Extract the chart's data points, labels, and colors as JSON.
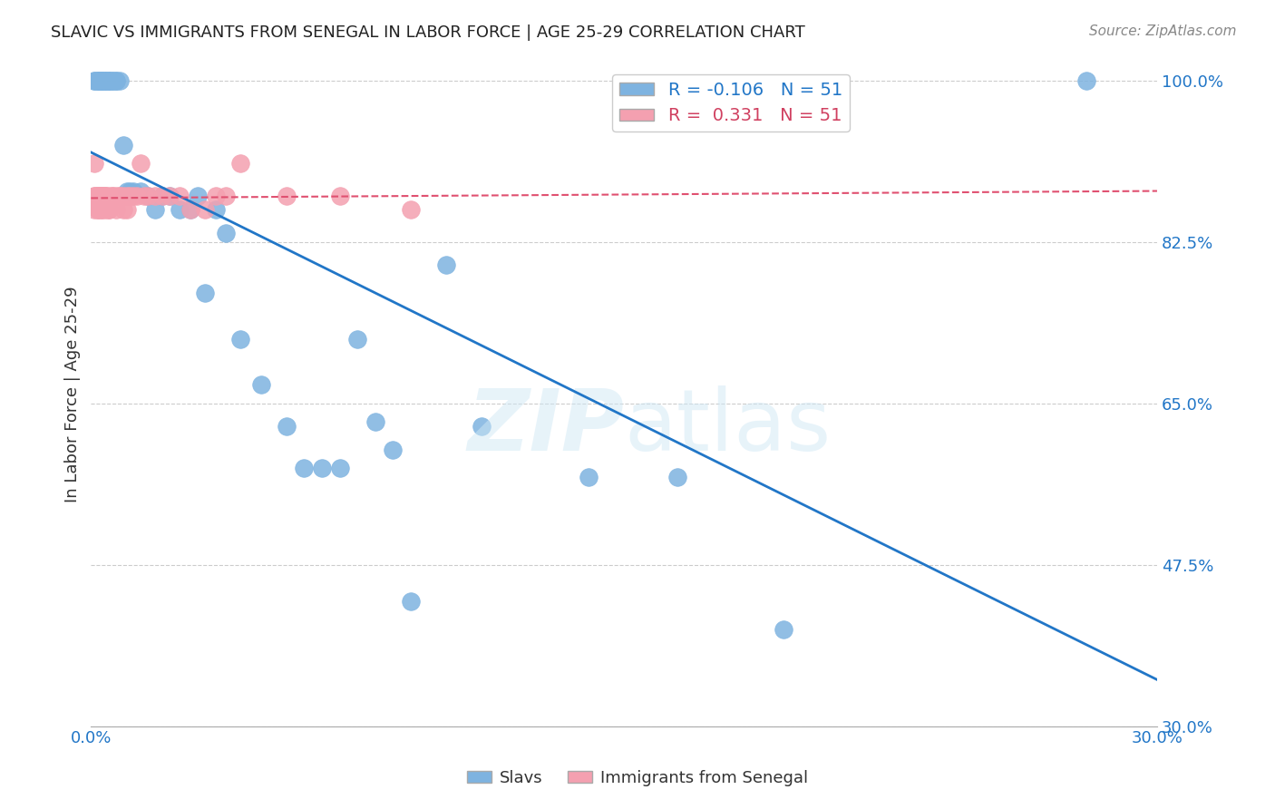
{
  "title": "SLAVIC VS IMMIGRANTS FROM SENEGAL IN LABOR FORCE | AGE 25-29 CORRELATION CHART",
  "source": "Source: ZipAtlas.com",
  "ylabel": "In Labor Force | Age 25-29",
  "x_min": 0.0,
  "x_max": 0.3,
  "y_min": 0.3,
  "y_max": 1.02,
  "legend_r_slavs": "-0.106",
  "legend_n_slavs": "51",
  "legend_r_senegal": "0.331",
  "legend_n_senegal": "51",
  "slavs_color": "#7eb3e0",
  "senegal_color": "#f4a0b0",
  "slavs_line_color": "#2176c7",
  "senegal_line_color": "#e05070",
  "background_color": "#ffffff",
  "grid_color": "#cccccc",
  "slavs_x": [
    0.001,
    0.001,
    0.002,
    0.002,
    0.002,
    0.003,
    0.003,
    0.003,
    0.003,
    0.004,
    0.004,
    0.004,
    0.005,
    0.005,
    0.005,
    0.006,
    0.006,
    0.007,
    0.007,
    0.008,
    0.009,
    0.01,
    0.011,
    0.012,
    0.014,
    0.016,
    0.018,
    0.02,
    0.022,
    0.025,
    0.028,
    0.03,
    0.032,
    0.035,
    0.038,
    0.042,
    0.048,
    0.055,
    0.06,
    0.065,
    0.07,
    0.075,
    0.08,
    0.085,
    0.09,
    0.1,
    0.11,
    0.14,
    0.165,
    0.195,
    0.28
  ],
  "slavs_y": [
    1.0,
    1.0,
    1.0,
    1.0,
    1.0,
    1.0,
    1.0,
    1.0,
    1.0,
    1.0,
    1.0,
    1.0,
    1.0,
    1.0,
    1.0,
    1.0,
    1.0,
    1.0,
    1.0,
    1.0,
    0.93,
    0.88,
    0.88,
    0.88,
    0.88,
    0.875,
    0.86,
    0.875,
    0.875,
    0.86,
    0.86,
    0.875,
    0.77,
    0.86,
    0.835,
    0.72,
    0.67,
    0.625,
    0.58,
    0.58,
    0.58,
    0.72,
    0.63,
    0.6,
    0.435,
    0.8,
    0.625,
    0.57,
    0.57,
    0.405,
    1.0
  ],
  "senegal_x": [
    0.001,
    0.001,
    0.001,
    0.001,
    0.002,
    0.002,
    0.002,
    0.002,
    0.002,
    0.002,
    0.003,
    0.003,
    0.003,
    0.003,
    0.003,
    0.003,
    0.004,
    0.004,
    0.004,
    0.004,
    0.005,
    0.005,
    0.005,
    0.006,
    0.006,
    0.007,
    0.007,
    0.008,
    0.008,
    0.009,
    0.009,
    0.01,
    0.01,
    0.011,
    0.012,
    0.013,
    0.014,
    0.015,
    0.016,
    0.018,
    0.02,
    0.022,
    0.025,
    0.028,
    0.032,
    0.035,
    0.038,
    0.042,
    0.055,
    0.07,
    0.09
  ],
  "senegal_y": [
    0.91,
    0.875,
    0.875,
    0.86,
    0.875,
    0.875,
    0.875,
    0.875,
    0.86,
    0.86,
    0.875,
    0.875,
    0.875,
    0.875,
    0.86,
    0.86,
    0.875,
    0.875,
    0.875,
    0.86,
    0.875,
    0.86,
    0.86,
    0.875,
    0.875,
    0.875,
    0.86,
    0.875,
    0.875,
    0.875,
    0.86,
    0.875,
    0.86,
    0.875,
    0.875,
    0.875,
    0.91,
    0.875,
    0.875,
    0.875,
    0.875,
    0.875,
    0.875,
    0.86,
    0.86,
    0.875,
    0.875,
    0.91,
    0.875,
    0.875,
    0.86
  ]
}
